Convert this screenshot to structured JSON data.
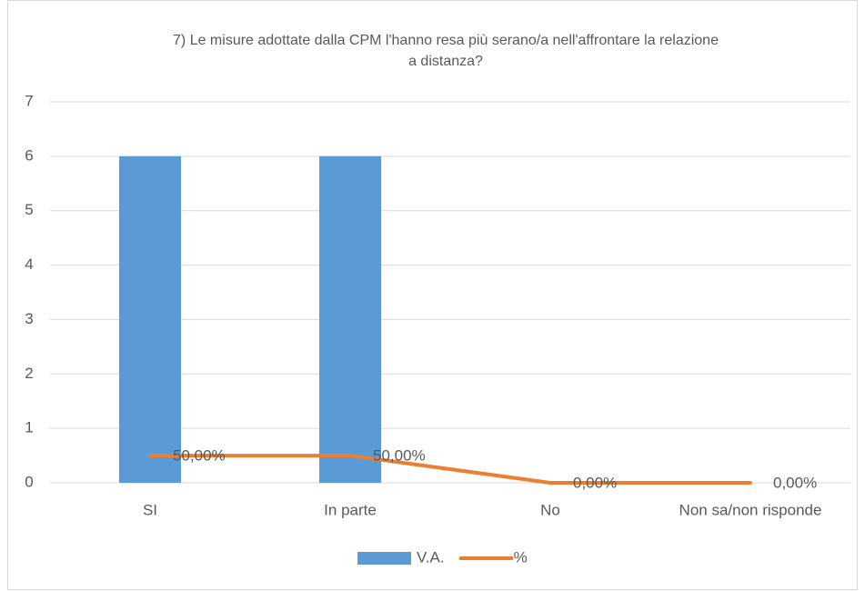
{
  "chart_data": {
    "type": "combo",
    "title": "7) Le misure adottate dalla CPM l'hanno resa più serano/a nell'affrontare la relazione",
    "subtitle": "a distanza?",
    "categories": [
      "SI",
      "In parte",
      "No",
      "Non sa/non risponde"
    ],
    "series": [
      {
        "name": "V.A.",
        "type": "bar",
        "color": "#5b9bd5",
        "values": [
          6,
          6,
          0,
          0
        ]
      },
      {
        "name": "%",
        "type": "line",
        "color": "#ed7d31",
        "values": [
          0.5,
          0.5,
          0,
          0
        ],
        "value_labels": [
          "50,00%",
          "50,00%",
          "0,00%",
          "0,00%"
        ]
      }
    ],
    "ylim": [
      0,
      7
    ],
    "yticks": [
      0,
      1,
      2,
      3,
      4,
      5,
      6,
      7
    ],
    "grid": true,
    "legend": "bottom"
  }
}
